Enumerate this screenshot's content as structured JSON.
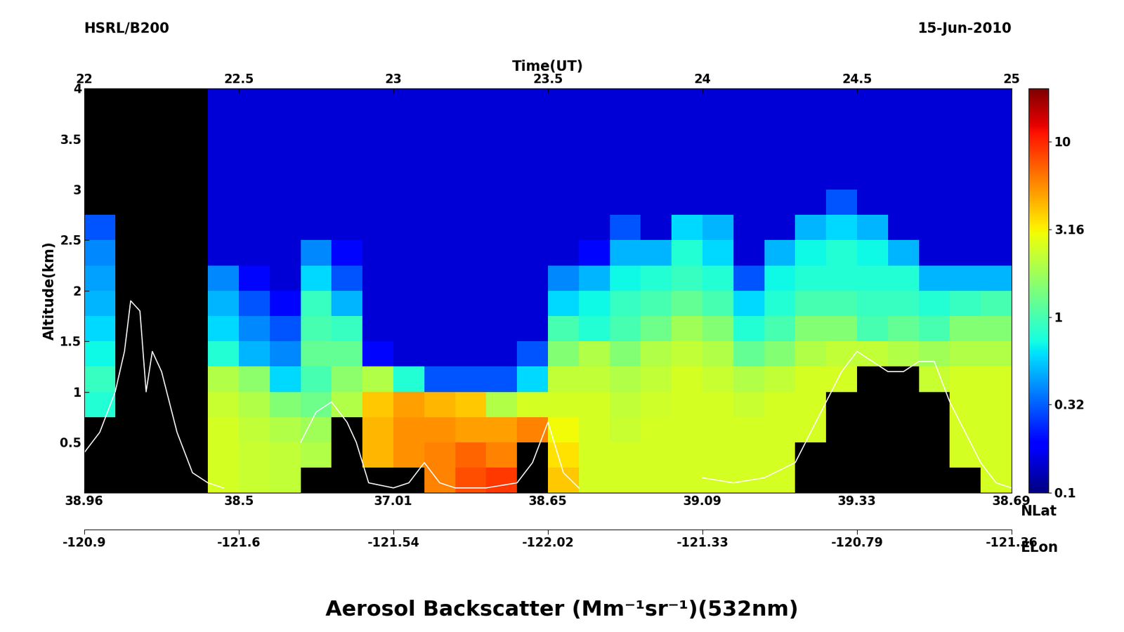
{
  "chart_data": {
    "type": "heatmap",
    "title": "Aerosol Backscatter (Mm⁻¹sr⁻¹)(532nm)",
    "annotations": [
      "HSRL/B200",
      "15-Jun-2010"
    ],
    "xlabel": "Time(UT)",
    "ylabel": "Altitude(km)",
    "xlim": [
      22,
      25
    ],
    "xticks": [
      22,
      22.5,
      23,
      23.5,
      24,
      24.5,
      25
    ],
    "ylim": [
      0,
      4
    ],
    "yticks": [
      0.5,
      1,
      1.5,
      2,
      2.5,
      3,
      3.5,
      4
    ],
    "lat_label": "NLat",
    "lon_label": "ELon",
    "lat_ticks": [
      {
        "value": 22,
        "label": "38.96"
      },
      {
        "value": 22.5,
        "label": "38.5"
      },
      {
        "value": 23,
        "label": "37.01"
      },
      {
        "value": 23.5,
        "label": "38.65"
      },
      {
        "value": 24,
        "label": "39.09"
      },
      {
        "value": 24.5,
        "label": "39.33"
      },
      {
        "value": 25,
        "label": "38.69"
      }
    ],
    "lon_ticks": [
      {
        "value": 22,
        "label": "-120.9"
      },
      {
        "value": 22.5,
        "label": "-121.6"
      },
      {
        "value": 23,
        "label": "-121.54"
      },
      {
        "value": 23.5,
        "label": "-122.02"
      },
      {
        "value": 24,
        "label": "-121.33"
      },
      {
        "value": 24.5,
        "label": "-120.79"
      },
      {
        "value": 25,
        "label": "-121.36"
      }
    ],
    "x": [
      22.05,
      22.15,
      22.25,
      22.35,
      22.45,
      22.55,
      22.65,
      22.75,
      22.85,
      22.95,
      23.05,
      23.15,
      23.25,
      23.35,
      23.45,
      23.55,
      23.65,
      23.75,
      23.85,
      23.95,
      24.05,
      24.15,
      24.25,
      24.35,
      24.45,
      24.55,
      24.65,
      24.75,
      24.85,
      24.95
    ],
    "y": [
      0.125,
      0.375,
      0.625,
      0.875,
      1.125,
      1.375,
      1.625,
      1.875,
      2.125,
      2.375,
      2.625,
      2.875,
      3.125,
      3.375,
      3.625,
      3.875
    ],
    "cells": [
      [
        null,
        null,
        null,
        0.8,
        0.9,
        0.7,
        0.6,
        0.5,
        0.45,
        0.4,
        0.3,
        null,
        null,
        null,
        null,
        null
      ],
      [
        null,
        null,
        null,
        null,
        null,
        null,
        null,
        null,
        null,
        null,
        null,
        null,
        null,
        null,
        null,
        null
      ],
      [
        null,
        null,
        null,
        null,
        null,
        null,
        null,
        null,
        null,
        null,
        null,
        null,
        null,
        null,
        null,
        null
      ],
      [
        null,
        null,
        null,
        null,
        null,
        null,
        null,
        null,
        null,
        null,
        null,
        null,
        null,
        null,
        null,
        null
      ],
      [
        2.5,
        2.5,
        2.5,
        2.3,
        2.0,
        0.8,
        0.6,
        0.5,
        0.4,
        0.15,
        0.15,
        0.15,
        0.15,
        0.15,
        0.15,
        0.15
      ],
      [
        2.3,
        2.3,
        2.2,
        2.0,
        1.6,
        0.5,
        0.4,
        0.3,
        0.2,
        0.15,
        0.15,
        0.15,
        0.15,
        0.15,
        0.15,
        0.15
      ],
      [
        2.2,
        2.2,
        2.0,
        1.5,
        0.6,
        0.4,
        0.3,
        0.2,
        0.15,
        0.15,
        0.15,
        0.15,
        0.15,
        0.15,
        0.15,
        0.15
      ],
      [
        null,
        2.0,
        1.8,
        1.3,
        1.0,
        1.2,
        1.0,
        0.9,
        0.6,
        0.4,
        0.15,
        0.15,
        0.15,
        0.15,
        0.15,
        0.15
      ],
      [
        null,
        null,
        null,
        2.0,
        1.6,
        1.2,
        0.9,
        0.5,
        0.3,
        0.2,
        0.15,
        0.15,
        0.15,
        0.15,
        0.15,
        0.15
      ],
      [
        null,
        4.5,
        4.5,
        4.0,
        2.0,
        0.2,
        0.15,
        0.15,
        0.15,
        0.15,
        0.15,
        0.15,
        0.15,
        0.15,
        0.15,
        0.15
      ],
      [
        null,
        5.5,
        5.5,
        5.0,
        0.8,
        0.15,
        0.15,
        0.15,
        0.15,
        0.15,
        0.15,
        0.15,
        0.15,
        0.15,
        0.15,
        0.15
      ],
      [
        6,
        6,
        5.5,
        4.5,
        0.3,
        0.15,
        0.15,
        0.15,
        0.15,
        0.15,
        0.15,
        0.15,
        0.15,
        0.15,
        0.15,
        0.15
      ],
      [
        8,
        7,
        5,
        4,
        0.3,
        0.15,
        0.15,
        0.15,
        0.15,
        0.15,
        0.15,
        0.15,
        0.15,
        0.15,
        0.15,
        0.15
      ],
      [
        9,
        6,
        5,
        2,
        0.3,
        0.15,
        0.15,
        0.15,
        0.15,
        0.15,
        0.15,
        0.15,
        0.15,
        0.15,
        0.15,
        0.15
      ],
      [
        null,
        null,
        6,
        2.5,
        0.6,
        0.3,
        0.15,
        0.15,
        0.15,
        0.15,
        0.15,
        0.15,
        0.15,
        0.15,
        0.15,
        0.15
      ],
      [
        4,
        3.5,
        3,
        2.5,
        2.2,
        1.5,
        1.0,
        0.6,
        0.4,
        0.15,
        0.15,
        0.15,
        0.15,
        0.15,
        0.15,
        0.15
      ],
      [
        2.5,
        2.5,
        2.5,
        2.5,
        2.2,
        2.0,
        0.8,
        0.7,
        0.5,
        0.2,
        0.15,
        0.15,
        0.15,
        0.15,
        0.15,
        0.15
      ],
      [
        2.5,
        2.5,
        2.3,
        2.2,
        2.0,
        1.5,
        1.0,
        0.9,
        0.7,
        0.5,
        0.3,
        0.15,
        0.15,
        0.15,
        0.15,
        0.15
      ],
      [
        2.5,
        2.5,
        2.5,
        2.4,
        2.2,
        2.0,
        1.3,
        1.0,
        0.8,
        0.5,
        0.15,
        0.15,
        0.15,
        0.15,
        0.15,
        0.15
      ],
      [
        2.5,
        2.5,
        2.5,
        2.5,
        2.5,
        2.2,
        1.8,
        1.2,
        0.9,
        0.8,
        0.6,
        0.15,
        0.15,
        0.15,
        0.15,
        0.15
      ],
      [
        2.5,
        2.5,
        2.5,
        2.5,
        2.3,
        2.0,
        1.5,
        1.0,
        0.8,
        0.6,
        0.5,
        0.15,
        0.15,
        0.15,
        0.15,
        0.15
      ],
      [
        2.5,
        2.5,
        2.5,
        2.3,
        2.0,
        1.2,
        0.8,
        0.6,
        0.3,
        0.15,
        0.15,
        0.15,
        0.15,
        0.15,
        0.15,
        0.15
      ],
      [
        2.5,
        2.5,
        2.5,
        2.5,
        2.2,
        1.5,
        1.0,
        0.8,
        0.7,
        0.5,
        0.15,
        0.15,
        0.15,
        0.15,
        0.15,
        0.15
      ],
      [
        null,
        null,
        2.5,
        2.5,
        2.5,
        2.0,
        1.5,
        1.0,
        0.8,
        0.7,
        0.5,
        0.15,
        0.15,
        0.15,
        0.15,
        0.15
      ],
      [
        null,
        null,
        null,
        null,
        2.5,
        2.2,
        1.5,
        1.0,
        0.8,
        0.8,
        0.6,
        0.3,
        0.15,
        0.15,
        0.15,
        0.15
      ],
      [
        null,
        null,
        null,
        null,
        null,
        2.2,
        1.0,
        0.9,
        0.8,
        0.7,
        0.5,
        0.15,
        0.15,
        0.15,
        0.15,
        0.15
      ],
      [
        null,
        null,
        null,
        null,
        null,
        2.0,
        1.2,
        0.9,
        0.8,
        0.5,
        0.15,
        0.15,
        0.15,
        0.15,
        0.15,
        0.15
      ],
      [
        null,
        null,
        null,
        null,
        2.3,
        1.8,
        1.0,
        0.8,
        0.5,
        0.15,
        0.15,
        0.15,
        0.15,
        0.15,
        0.15,
        0.15
      ],
      [
        null,
        2.5,
        2.5,
        2.5,
        2.5,
        2.0,
        1.5,
        0.9,
        0.5,
        0.15,
        0.15,
        0.15,
        0.15,
        0.15,
        0.15,
        0.15
      ],
      [
        2.5,
        2.5,
        2.5,
        2.5,
        2.5,
        2.0,
        1.5,
        1.0,
        0.5,
        0.15,
        0.15,
        0.15,
        0.15,
        0.15,
        0.15,
        0.15
      ]
    ],
    "colorbar": {
      "lim": [
        0.1,
        20
      ],
      "ticks": [
        0.1,
        0.32,
        1,
        3.16,
        10
      ],
      "log": true
    },
    "series": [
      {
        "type": "line",
        "color": "white",
        "x": [
          22.0,
          22.05,
          22.1,
          22.13,
          22.15,
          22.18,
          22.2,
          22.22,
          22.25,
          22.3,
          22.35,
          22.4,
          22.45,
          22.6,
          22.7,
          22.75,
          22.8,
          22.85,
          22.88,
          22.92,
          23.0,
          23.05,
          23.1,
          23.15,
          23.2,
          23.3,
          23.4,
          23.45,
          23.5,
          23.55,
          23.6,
          23.8,
          24.0,
          24.1,
          24.2,
          24.3,
          24.35,
          24.4,
          24.45,
          24.5,
          24.55,
          24.6,
          24.65,
          24.7,
          24.75,
          24.8,
          24.85,
          24.9,
          24.95,
          25.0
        ],
        "values": [
          0.4,
          0.6,
          1.0,
          1.4,
          1.9,
          1.8,
          1.0,
          1.4,
          1.2,
          0.6,
          0.2,
          0.1,
          0.05,
          null,
          0.5,
          0.8,
          0.9,
          0.7,
          0.5,
          0.1,
          0.05,
          0.1,
          0.3,
          0.1,
          0.05,
          0.05,
          0.1,
          0.3,
          0.7,
          0.2,
          0.05,
          null,
          0.15,
          0.1,
          0.15,
          0.3,
          0.6,
          0.9,
          1.2,
          1.4,
          1.3,
          1.2,
          1.2,
          1.3,
          1.3,
          0.9,
          0.6,
          0.3,
          0.1,
          0.05
        ]
      }
    ]
  }
}
